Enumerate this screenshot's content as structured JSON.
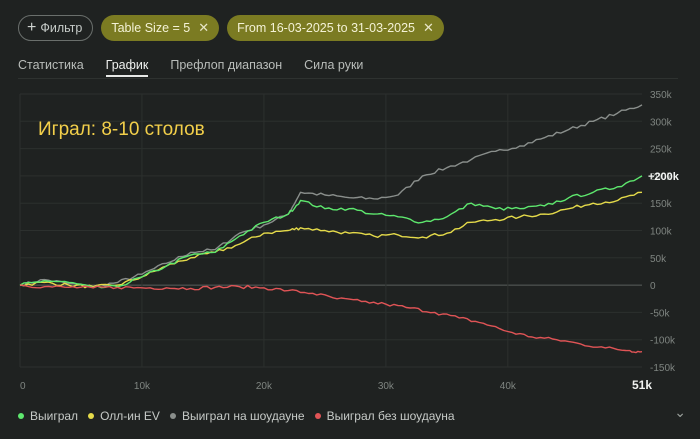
{
  "filters": {
    "add_label": "Фильтр",
    "chips": [
      {
        "label": "Table Size = 5"
      },
      {
        "label": "From 16-03-2025 to 31-03-2025"
      }
    ]
  },
  "tabs": [
    {
      "label": "Статистика",
      "active": false
    },
    {
      "label": "График",
      "active": true
    },
    {
      "label": "Префлоп диапазон",
      "active": false
    },
    {
      "label": "Сила руки",
      "active": false
    }
  ],
  "chart_data": {
    "type": "line",
    "title": "Играл: 8-10 столов",
    "xlim": [
      0,
      51000
    ],
    "ylim": [
      -150000,
      350000
    ],
    "x_ticks": [
      "0",
      "10k",
      "20k",
      "30k",
      "40k",
      "51k"
    ],
    "y_ticks": [
      "350k",
      "300k",
      "250k",
      "200k",
      "150k",
      "100k",
      "50k",
      "0",
      "-50k",
      "-100k",
      "-150k"
    ],
    "end_label": "+200k",
    "grid": true,
    "series": [
      {
        "name": "Выиграл",
        "color": "#5ee86e",
        "x": [
          0,
          2000,
          4000,
          6000,
          8000,
          10000,
          12000,
          14000,
          16000,
          18000,
          20000,
          22000,
          23000,
          25000,
          27000,
          29000,
          31000,
          33000,
          35000,
          37000,
          39000,
          41000,
          43000,
          45000,
          47000,
          49000,
          51000
        ],
        "y": [
          0,
          8000,
          5000,
          -5000,
          -3000,
          15000,
          35000,
          55000,
          60000,
          90000,
          115000,
          130000,
          155000,
          140000,
          140000,
          130000,
          125000,
          115000,
          125000,
          150000,
          140000,
          140000,
          145000,
          160000,
          170000,
          180000,
          200000
        ]
      },
      {
        "name": "Олл-ин EV",
        "color": "#e5db4a",
        "x": [
          0,
          2000,
          4000,
          6000,
          8000,
          10000,
          12000,
          14000,
          16000,
          18000,
          20000,
          22000,
          23000,
          25000,
          27000,
          29000,
          31000,
          33000,
          35000,
          37000,
          39000,
          41000,
          43000,
          45000,
          47000,
          49000,
          51000
        ],
        "y": [
          0,
          5000,
          0,
          -3000,
          0,
          15000,
          35000,
          50000,
          60000,
          75000,
          95000,
          100000,
          105000,
          100000,
          95000,
          90000,
          92000,
          88000,
          95000,
          115000,
          120000,
          125000,
          130000,
          140000,
          150000,
          155000,
          170000
        ]
      },
      {
        "name": "Выиграл на шоудауне",
        "color": "#8a8f8c",
        "x": [
          0,
          2000,
          4000,
          6000,
          8000,
          10000,
          12000,
          14000,
          16000,
          18000,
          20000,
          22000,
          23000,
          25000,
          27000,
          29000,
          31000,
          33000,
          35000,
          37000,
          39000,
          41000,
          43000,
          45000,
          47000,
          49000,
          51000
        ],
        "y": [
          0,
          10000,
          3000,
          -3000,
          5000,
          20000,
          40000,
          60000,
          65000,
          95000,
          110000,
          130000,
          170000,
          165000,
          160000,
          158000,
          165000,
          200000,
          215000,
          230000,
          245000,
          255000,
          270000,
          285000,
          300000,
          315000,
          330000
        ]
      },
      {
        "name": "Выиграл без шоудауна",
        "color": "#e05456",
        "x": [
          0,
          2000,
          4000,
          6000,
          8000,
          10000,
          12000,
          14000,
          16000,
          18000,
          20000,
          22000,
          24000,
          26000,
          28000,
          30000,
          32000,
          34000,
          36000,
          38000,
          40000,
          42000,
          44000,
          46000,
          48000,
          50000,
          51000
        ],
        "y": [
          0,
          -3000,
          -4000,
          -5000,
          -4000,
          -5000,
          -5000,
          -6000,
          -4000,
          -3000,
          -5000,
          -10000,
          -15000,
          -25000,
          -30000,
          -35000,
          -42000,
          -50000,
          -60000,
          -70000,
          -85000,
          -95000,
          -100000,
          -108000,
          -115000,
          -120000,
          -122000
        ]
      }
    ]
  }
}
